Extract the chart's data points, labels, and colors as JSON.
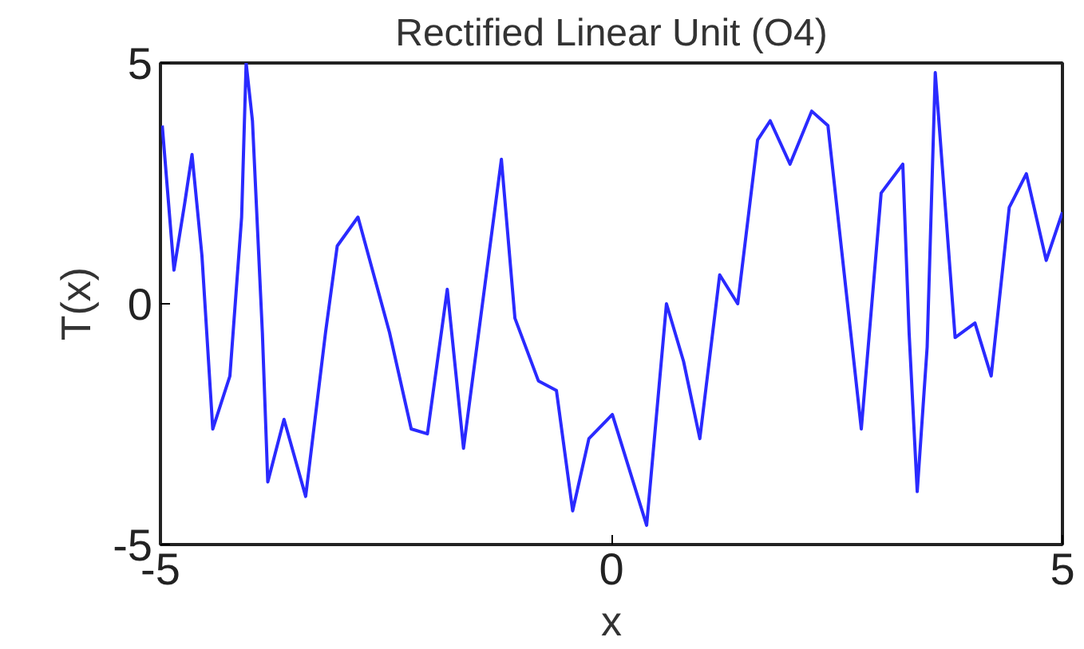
{
  "chart_data": {
    "type": "line",
    "title": "Rectified Linear Unit (O4)",
    "xlabel": "x",
    "ylabel": "T(x)",
    "xlim": [
      -5,
      5
    ],
    "ylim": [
      -5,
      5
    ],
    "xticks": [
      -5,
      0,
      5
    ],
    "yticks": [
      -5,
      0,
      5
    ],
    "grid": false,
    "marker": "none",
    "line_style": "solid",
    "series": [
      {
        "color": "#2a2aff",
        "x": [
          -4.98,
          -4.85,
          -4.73,
          -4.65,
          -4.54,
          -4.42,
          -4.23,
          -4.1,
          -4.05,
          -3.98,
          -3.87,
          -3.81,
          -3.63,
          -3.39,
          -3.17,
          -3.04,
          -2.81,
          -2.46,
          -2.22,
          -2.04,
          -1.82,
          -1.64,
          -1.22,
          -1.07,
          -0.81,
          -0.61,
          -0.43,
          -0.25,
          0.01,
          0.39,
          0.61,
          0.8,
          0.98,
          1.2,
          1.4,
          1.62,
          1.76,
          1.98,
          2.22,
          2.4,
          2.77,
          2.99,
          3.23,
          3.3,
          3.39,
          3.5,
          3.59,
          3.81,
          4.03,
          4.21,
          4.41,
          4.6,
          4.82,
          5.0
        ],
        "values": [
          3.7,
          0.7,
          2.1,
          3.1,
          1.0,
          -2.6,
          -1.5,
          1.8,
          5.0,
          3.8,
          -0.6,
          -3.7,
          -2.4,
          -4.0,
          -0.6,
          1.2,
          1.8,
          -0.6,
          -2.6,
          -2.7,
          0.3,
          -3.0,
          3.0,
          -0.3,
          -1.6,
          -1.8,
          -4.3,
          -2.8,
          -2.3,
          -4.6,
          0.0,
          -1.2,
          -2.8,
          0.6,
          0.0,
          3.4,
          3.8,
          2.9,
          4.0,
          3.7,
          -2.6,
          2.3,
          2.9,
          -0.6,
          -3.9,
          -0.9,
          4.8,
          -0.7,
          -0.4,
          -1.5,
          2.0,
          2.7,
          0.9,
          1.9
        ]
      }
    ]
  }
}
